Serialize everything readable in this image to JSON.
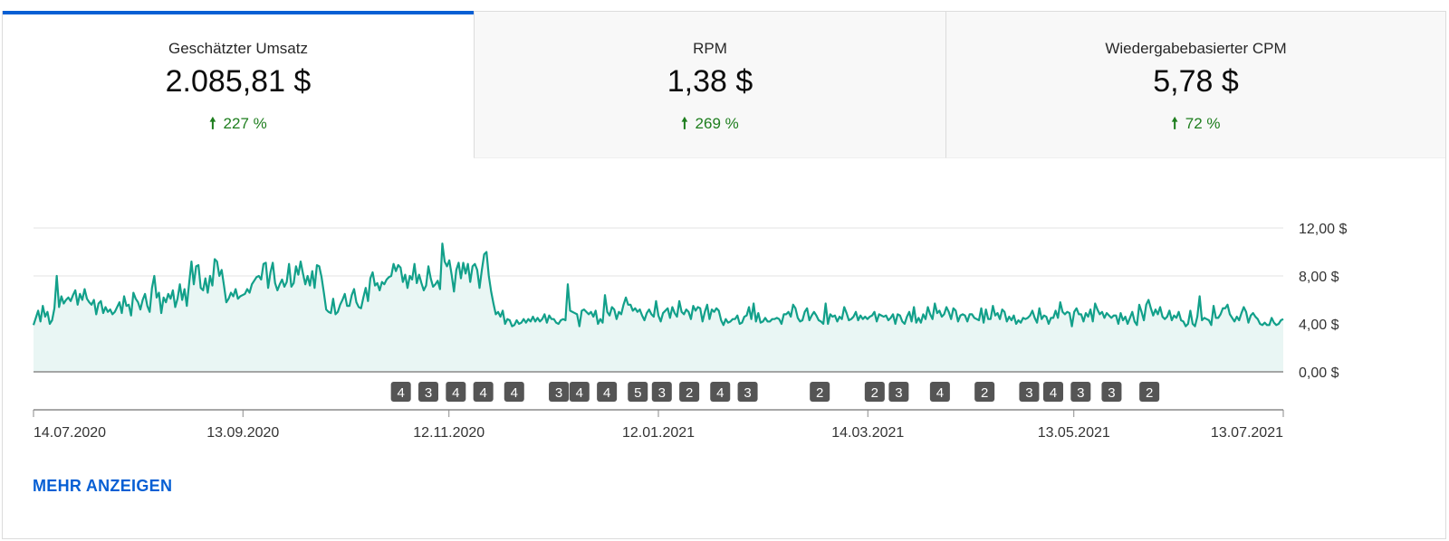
{
  "metric_tabs": [
    {
      "label": "Geschätzter Umsatz",
      "value": "2.085,81 $",
      "delta": "227 %",
      "arrow_icon": "arrow-up-icon",
      "active": true
    },
    {
      "label": "RPM",
      "value": "1,38 $",
      "delta": "269 %",
      "arrow_icon": "arrow-up-icon",
      "active": false
    },
    {
      "label": "Wiedergabebasierter CPM",
      "value": "5,78 $",
      "delta": "72 %",
      "arrow_icon": "arrow-up-icon",
      "active": false
    }
  ],
  "colors": {
    "accent": "#065fd4",
    "positive": "#1e7e1e",
    "line": "#12a08a",
    "area": "#e9f6f4",
    "marker": "#555555"
  },
  "more_link": "MEHR ANZEIGEN",
  "chart_data": {
    "type": "area",
    "title": "",
    "xlabel": "",
    "ylabel": "",
    "x_start": "14.07.2020",
    "x_end": "13.07.2021",
    "x_ticks": [
      "14.07.2020",
      "13.09.2020",
      "12.11.2020",
      "12.01.2021",
      "14.03.2021",
      "13.05.2021",
      "13.07.2021"
    ],
    "y_ticks": [
      "0,00 $",
      "4,00 $",
      "8,00 $",
      "12,00 $"
    ],
    "y_tick_values": [
      0,
      4,
      8,
      12
    ],
    "ylim": [
      0,
      12
    ],
    "grid": true,
    "y_axis_side": "right",
    "series": [
      {
        "values": [
          3.9,
          4.5,
          5.1,
          4.2,
          5.5,
          4.6,
          5.0,
          4.0,
          4.3,
          5.3,
          8.0,
          5.4,
          6.3,
          5.7,
          6.0,
          6.2,
          5.9,
          6.4,
          6.8,
          5.6,
          6.5,
          6.0,
          6.9,
          6.1,
          5.8,
          5.6,
          6.0,
          4.8,
          5.7,
          5.9,
          4.9,
          5.4,
          5.0,
          5.2,
          4.8,
          5.0,
          5.4,
          5.8,
          4.9,
          6.3,
          5.5,
          5.6,
          4.7,
          6.6,
          6.1,
          5.8,
          5.2,
          6.0,
          6.5,
          5.5,
          5.0,
          7.0,
          8.0,
          6.2,
          6.6,
          4.9,
          6.2,
          5.8,
          6.5,
          6.1,
          6.8,
          5.4,
          6.1,
          7.3,
          6.0,
          6.9,
          5.5,
          7.4,
          9.2,
          7.3,
          8.8,
          8.9,
          7.0,
          6.8,
          7.8,
          6.6,
          8.0,
          7.2,
          9.4,
          9.2,
          8.0,
          8.5,
          7.2,
          5.8,
          6.1,
          6.6,
          6.3,
          6.9,
          6.1,
          6.3,
          6.4,
          6.5,
          6.9,
          6.6,
          7.3,
          7.6,
          7.9,
          8.0,
          7.7,
          9.0,
          9.1,
          7.0,
          8.3,
          9.1,
          7.4,
          6.8,
          7.3,
          7.7,
          7.1,
          7.5,
          9.0,
          7.1,
          7.4,
          8.8,
          8.1,
          9.2,
          8.2,
          7.3,
          8.0,
          7.2,
          8.4,
          7.0,
          8.9,
          8.8,
          7.9,
          6.6,
          5.2,
          5.0,
          4.9,
          6.1,
          4.8,
          5.0,
          5.6,
          6.0,
          6.5,
          5.5,
          5.5,
          6.4,
          6.9,
          5.8,
          5.4,
          5.3,
          6.2,
          7.0,
          5.9,
          7.8,
          8.3,
          7.2,
          7.4,
          6.8,
          7.5,
          7.3,
          7.7,
          7.9,
          8.0,
          9.0,
          8.4,
          8.9,
          8.7,
          7.5,
          8.1,
          7.0,
          8.0,
          7.7,
          9.0,
          7.4,
          8.1,
          7.4,
          6.8,
          7.2,
          8.8,
          7.8,
          7.1,
          7.3,
          7.6,
          6.9,
          10.7,
          9.2,
          8.8,
          9.3,
          8.1,
          6.7,
          8.5,
          9.1,
          7.8,
          9.1,
          8.2,
          9.0,
          7.5,
          8.8,
          9.0,
          8.5,
          7.0,
          8.5,
          9.8,
          10.0,
          8.0,
          6.7,
          5.7,
          4.8,
          5.0,
          4.6,
          5.1,
          4.0,
          4.4,
          4.3,
          3.8,
          3.9,
          4.3,
          4.0,
          4.1,
          4.4,
          4.1,
          4.4,
          4.2,
          4.6,
          4.2,
          4.5,
          4.2,
          4.4,
          4.8,
          4.1,
          4.7,
          4.4,
          4.4,
          4.1,
          4.0,
          4.3,
          4.4,
          4.3,
          7.3,
          5.1,
          5.0,
          4.9,
          4.8,
          3.8,
          5.1,
          5.2,
          5.0,
          4.8,
          5.0,
          4.6,
          5.1,
          4.0,
          4.4,
          4.1,
          6.4,
          5.0,
          4.7,
          5.4,
          5.2,
          4.4,
          5.0,
          4.8,
          5.6,
          6.2,
          5.6,
          5.6,
          5.1,
          5.3,
          5.0,
          5.2,
          4.7,
          4.3,
          4.9,
          5.2,
          4.8,
          4.6,
          5.9,
          4.7,
          4.2,
          4.9,
          5.1,
          5.3,
          4.5,
          5.4,
          4.9,
          4.6,
          5.9,
          5.0,
          4.8,
          5.2,
          5.0,
          4.4,
          5.5,
          5.1,
          5.4,
          5.3,
          4.2,
          5.0,
          5.6,
          4.4,
          5.2,
          5.0,
          5.3,
          5.1,
          4.3,
          3.9,
          4.4,
          4.1,
          4.2,
          4.4,
          4.4,
          4.7,
          4.0,
          4.1,
          4.6,
          4.7,
          5.4,
          4.4,
          5.7,
          4.2,
          4.9,
          4.1,
          4.2,
          4.5,
          4.2,
          4.2,
          4.4,
          4.4,
          4.5,
          4.4,
          4.0,
          4.8,
          4.8,
          5.0,
          4.6,
          5.6,
          5.3,
          4.5,
          4.2,
          4.3,
          5.0,
          5.3,
          4.3,
          4.7,
          5.0,
          4.7,
          4.3,
          4.2,
          4.0,
          5.7,
          4.0,
          4.8,
          4.6,
          4.7,
          4.2,
          4.6,
          4.4,
          5.4,
          4.9,
          4.3,
          4.4,
          4.6,
          5.0,
          4.3,
          4.7,
          4.4,
          4.6,
          4.4,
          4.6,
          4.7,
          5.0,
          4.2,
          4.8,
          4.7,
          4.6,
          4.7,
          4.3,
          4.5,
          4.8,
          4.0,
          4.8,
          4.7,
          4.2,
          4.0,
          4.6,
          5.0,
          4.2,
          5.4,
          4.1,
          4.5,
          4.1,
          4.8,
          4.4,
          5.4,
          4.8,
          4.4,
          5.7,
          4.9,
          5.1,
          4.6,
          4.8,
          5.4,
          5.0,
          4.4,
          5.3,
          5.1,
          4.2,
          4.7,
          4.8,
          4.7,
          4.2,
          4.8,
          4.8,
          4.5,
          4.4,
          4.3,
          5.3,
          4.1,
          5.2,
          4.4,
          4.4,
          5.5,
          4.7,
          4.9,
          4.4,
          5.2,
          5.0,
          4.2,
          4.6,
          4.3,
          4.7,
          4.0,
          4.3,
          4.1,
          4.5,
          4.4,
          4.5,
          4.7,
          5.1,
          4.5,
          4.1,
          5.3,
          4.4,
          4.7,
          4.6,
          4.0,
          4.5,
          4.5,
          5.1,
          4.5,
          5.8,
          5.0,
          4.8,
          5.0,
          4.9,
          3.8,
          5.0,
          5.3,
          4.8,
          4.8,
          4.2,
          4.9,
          4.6,
          5.2,
          4.2,
          5.7,
          5.2,
          4.8,
          5.0,
          4.5,
          4.9,
          4.7,
          4.5,
          4.7,
          4.7,
          4.0,
          4.9,
          4.3,
          4.6,
          4.0,
          4.5,
          5.0,
          4.2,
          3.9,
          5.6,
          5.0,
          4.3,
          5.6,
          6.0,
          5.3,
          4.7,
          5.2,
          4.8,
          5.4,
          4.6,
          4.4,
          4.6,
          5.1,
          4.3,
          4.7,
          4.5,
          5.0,
          4.3,
          4.2,
          3.8,
          4.0,
          5.1,
          4.0,
          3.8,
          4.6,
          6.3,
          4.3,
          4.5,
          4.4,
          4.3,
          3.9,
          5.5,
          4.5,
          4.5,
          4.8,
          5.3,
          5.3,
          5.6,
          4.8,
          4.5,
          4.2,
          4.6,
          4.3,
          4.9,
          5.4,
          5.0,
          4.1,
          4.7,
          4.9,
          4.6,
          4.4,
          4.0,
          3.9,
          4.1,
          3.9,
          3.9,
          4.5,
          4.1,
          3.9,
          4.0,
          4.3,
          4.4
        ]
      }
    ],
    "event_markers": [
      {
        "date": "29.10.2020",
        "label": "4"
      },
      {
        "date": "06.11.2020",
        "label": "3"
      },
      {
        "date": "14.11.2020",
        "label": "4"
      },
      {
        "date": "22.11.2020",
        "label": "4"
      },
      {
        "date": "01.12.2020",
        "label": "4"
      },
      {
        "date": "14.12.2020",
        "label": "3"
      },
      {
        "date": "20.12.2020",
        "label": "4"
      },
      {
        "date": "28.12.2020",
        "label": "4"
      },
      {
        "date": "06.01.2021",
        "label": "5"
      },
      {
        "date": "13.01.2021",
        "label": "3"
      },
      {
        "date": "21.01.2021",
        "label": "2"
      },
      {
        "date": "30.01.2021",
        "label": "4"
      },
      {
        "date": "07.02.2021",
        "label": "3"
      },
      {
        "date": "28.02.2021",
        "label": "2"
      },
      {
        "date": "16.03.2021",
        "label": "2"
      },
      {
        "date": "23.03.2021",
        "label": "3"
      },
      {
        "date": "04.04.2021",
        "label": "4"
      },
      {
        "date": "17.04.2021",
        "label": "2"
      },
      {
        "date": "30.04.2021",
        "label": "3"
      },
      {
        "date": "07.05.2021",
        "label": "4"
      },
      {
        "date": "15.05.2021",
        "label": "3"
      },
      {
        "date": "24.05.2021",
        "label": "3"
      },
      {
        "date": "04.06.2021",
        "label": "2"
      }
    ]
  }
}
